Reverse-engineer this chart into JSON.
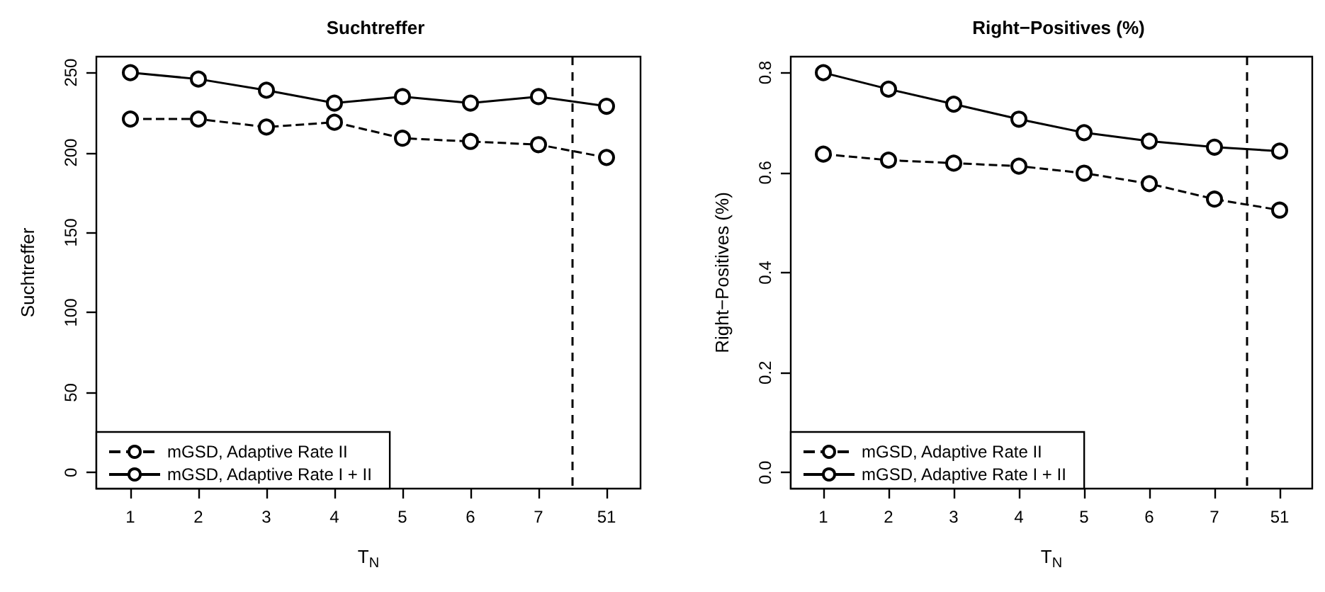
{
  "chart_data": [
    {
      "type": "line",
      "title": "Suchtreffer",
      "xlabel": "T$_{N}$",
      "ylabel": "Suchtreffer",
      "categories": [
        "1",
        "2",
        "3",
        "4",
        "5",
        "6",
        "7",
        "51"
      ],
      "ylim": [
        -10,
        260
      ],
      "yticks": [
        0,
        50,
        100,
        150,
        200,
        250
      ],
      "series": [
        {
          "name": "mGSD, Adaptive Rate II",
          "color": "#000000",
          "line_style": "dashed",
          "values": [
            221,
            221,
            216,
            219,
            209,
            207,
            205,
            197
          ]
        },
        {
          "name": "mGSD, Adaptive Rate I + II",
          "color": "#000000",
          "line_style": "solid",
          "values": [
            250,
            246,
            239,
            231,
            235,
            231,
            235,
            229
          ]
        }
      ],
      "marker": "circle",
      "legend": "bottom left",
      "grid": false
    },
    {
      "type": "line",
      "title": "Right−Positives (%)",
      "xlabel": "T$_{N}$",
      "ylabel": "Right−Positives (%)",
      "categories": [
        "1",
        "2",
        "3",
        "4",
        "5",
        "6",
        "7",
        "51"
      ],
      "ylim": [
        -0.032,
        0.832
      ],
      "yticks": [
        {
          "value": 0,
          "label": "0.0"
        },
        0.2,
        0.4,
        0.6,
        0.8
      ],
      "series": [
        {
          "name": "mGSD, Adaptive Rate II",
          "color": "#000000",
          "line_style": "dashed",
          "values": [
            0.637,
            0.625,
            0.619,
            0.613,
            0.599,
            0.578,
            0.547,
            0.525
          ]
        },
        {
          "name": "mGSD, Adaptive Rate I + II",
          "color": "#000000",
          "line_style": "solid",
          "values": [
            0.8,
            0.767,
            0.737,
            0.707,
            0.68,
            0.663,
            0.651,
            0.643
          ]
        }
      ],
      "marker": "circle",
      "legend": "bottom left",
      "grid": false
    }
  ]
}
